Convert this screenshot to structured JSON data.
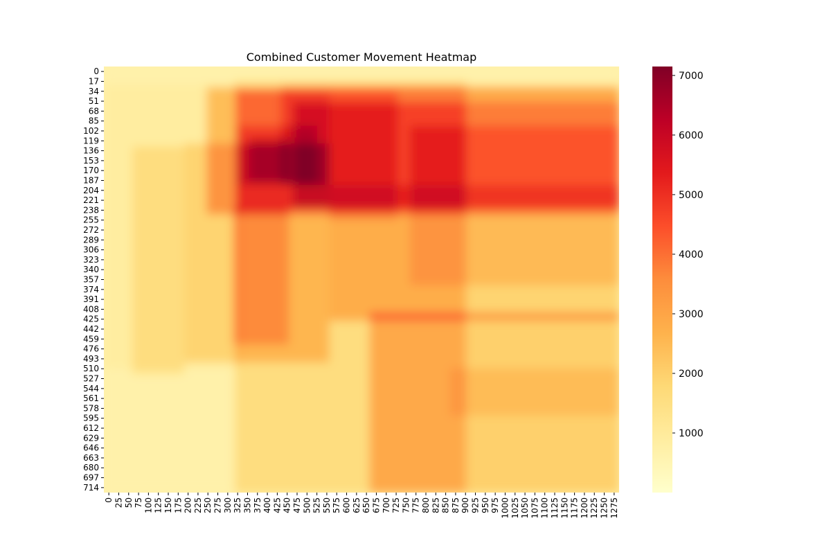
{
  "chart_data": {
    "type": "heatmap",
    "title": "Combined Customer Movement Heatmap",
    "xlabel": "",
    "ylabel": "",
    "x_tick_labels": [
      "0",
      "25",
      "50",
      "75",
      "100",
      "125",
      "150",
      "175",
      "200",
      "225",
      "250",
      "275",
      "300",
      "325",
      "350",
      "375",
      "400",
      "425",
      "450",
      "475",
      "500",
      "525",
      "550",
      "575",
      "600",
      "625",
      "650",
      "675",
      "700",
      "725",
      "750",
      "775",
      "800",
      "825",
      "850",
      "875",
      "900",
      "925",
      "950",
      "975",
      "1000",
      "1025",
      "1050",
      "1075",
      "1100",
      "1125",
      "1150",
      "1175",
      "1200",
      "1225",
      "1250",
      "1275"
    ],
    "y_tick_labels": [
      "0",
      "17",
      "34",
      "51",
      "68",
      "85",
      "102",
      "119",
      "136",
      "153",
      "170",
      "187",
      "204",
      "221",
      "238",
      "255",
      "272",
      "289",
      "306",
      "323",
      "340",
      "357",
      "374",
      "391",
      "408",
      "425",
      "442",
      "459",
      "476",
      "493",
      "510",
      "527",
      "544",
      "561",
      "578",
      "595",
      "612",
      "629",
      "646",
      "663",
      "680",
      "697",
      "714"
    ],
    "x_domain": [
      0,
      1280
    ],
    "y_domain": [
      0,
      720
    ],
    "colormap": "YlOrRd",
    "colorbar": {
      "min": 0,
      "max": 7150,
      "ticks": [
        1000,
        2000,
        3000,
        4000,
        5000,
        6000,
        7000
      ],
      "tick_labels": [
        "1000",
        "2000",
        "3000",
        "4000",
        "5000",
        "6000",
        "7000"
      ]
    },
    "colormap_stops": [
      "#ffffcc",
      "#ffeda0",
      "#fed976",
      "#feb24c",
      "#fd8d3c",
      "#fc4e2a",
      "#e31a1c",
      "#bd0026",
      "#800026"
    ],
    "background_value": 700,
    "regions": [
      {
        "x": [
          325,
          900
        ],
        "y": [
          25,
          750
        ],
        "value": 900
      },
      {
        "x": [
          0,
          340
        ],
        "y": [
          30,
          510
        ],
        "value": 200
      },
      {
        "x": [
          70,
          200
        ],
        "y": [
          135,
          520
        ],
        "value": 700
      },
      {
        "x": [
          200,
          560
        ],
        "y": [
          130,
          500
        ],
        "value": 1000
      },
      {
        "x": [
          660,
          1280
        ],
        "y": [
          415,
          720
        ],
        "value": 1300
      },
      {
        "x": [
          440,
          1280
        ],
        "y": [
          30,
          200
        ],
        "value": 700
      },
      {
        "x": [
          860,
          1280
        ],
        "y": [
          510,
          590
        ],
        "value": 450
      },
      {
        "x": [
          255,
          1280
        ],
        "y": [
          35,
          250
        ],
        "value": 1500
      },
      {
        "x": [
          320,
          460
        ],
        "y": [
          240,
          470
        ],
        "value": 1000
      },
      {
        "x": [
          560,
          1280
        ],
        "y": [
          200,
          430
        ],
        "value": 1200
      },
      {
        "x": [
          760,
          1280
        ],
        "y": [
          240,
          370
        ],
        "value": 600
      },
      {
        "x": [
          330,
          560
        ],
        "y": [
          40,
          240
        ],
        "value": 1000
      },
      {
        "x": [
          470,
          1280
        ],
        "y": [
          60,
          240
        ],
        "value": 900
      },
      {
        "x": [
          560,
          730
        ],
        "y": [
          40,
          260
        ],
        "value": 600
      },
      {
        "x": [
          760,
          1280
        ],
        "y": [
          100,
          240
        ],
        "value": 600
      },
      {
        "x": [
          330,
          530
        ],
        "y": [
          100,
          200
        ],
        "value": 700
      },
      {
        "x": [
          360,
          460
        ],
        "y": [
          120,
          195
        ],
        "value": 800
      }
    ]
  }
}
